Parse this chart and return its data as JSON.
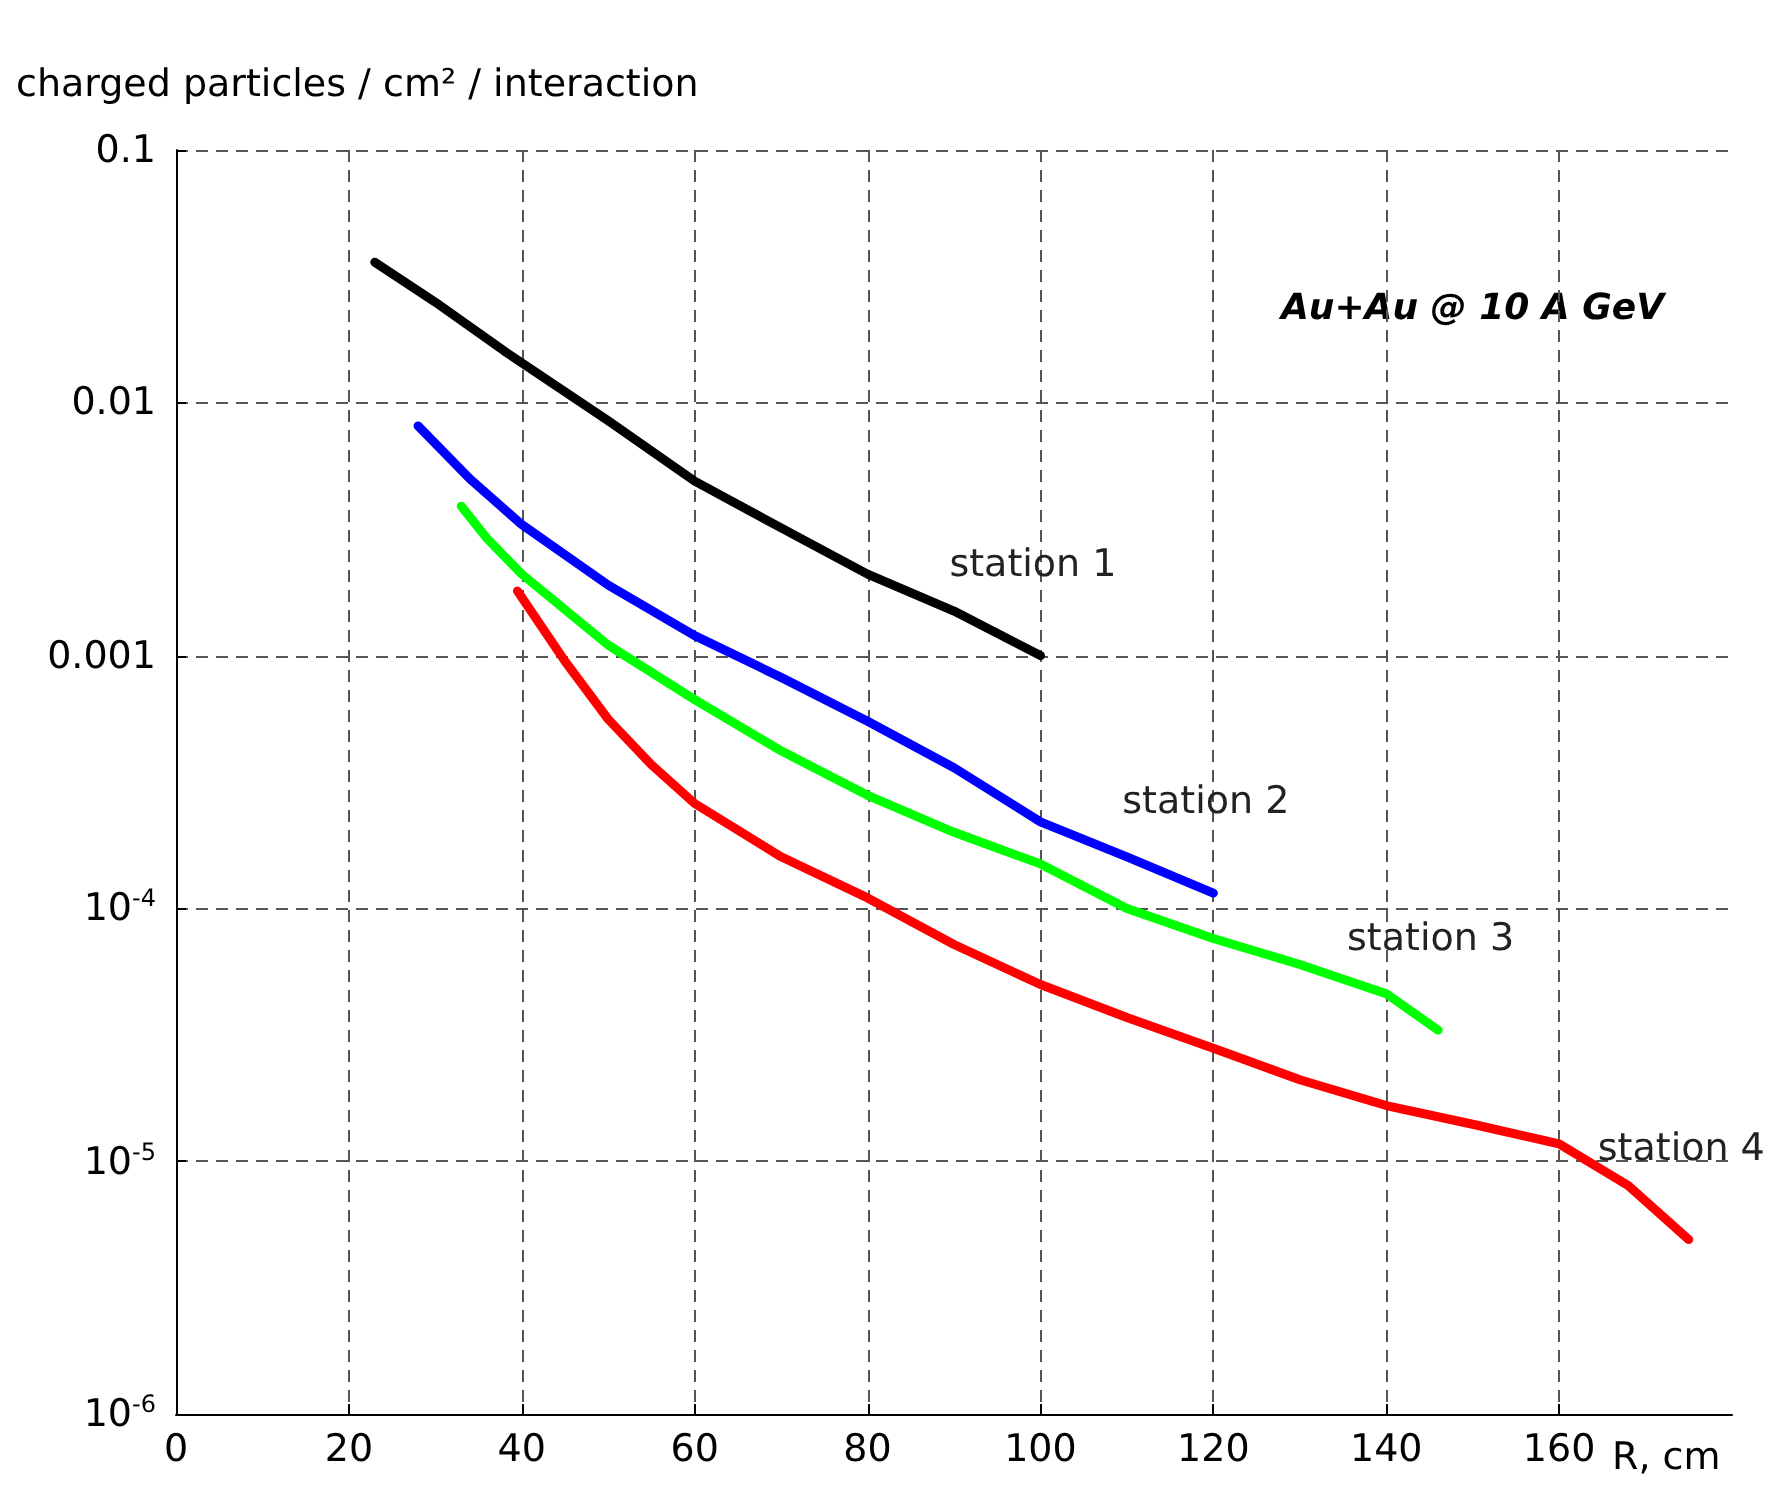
{
  "chart_data": {
    "type": "line",
    "ylabel": "charged particles / cm² / interaction",
    "xlabel": "R, cm",
    "log": "y",
    "grid": true,
    "legend": false,
    "marker": "none",
    "line_style": "solid",
    "xlim": [
      0,
      180
    ],
    "xticks": [
      0,
      20,
      40,
      60,
      80,
      100,
      120,
      140,
      160
    ],
    "ylim": [
      1e-06,
      0.1
    ],
    "yticks": [
      {
        "value": 1e-06,
        "label": "10$^{-6}$"
      },
      {
        "value": 1e-05,
        "label": "10$^{-5}$"
      },
      {
        "value": 0.0001,
        "label": "10$^{-4}$"
      },
      "0.001",
      "0.01",
      "0.1"
    ],
    "series": [
      {
        "name": "station 1",
        "color": "#000000",
        "x": [
          23,
          30,
          38,
          50,
          60,
          70,
          80,
          90,
          100
        ],
        "values": [
          0.036,
          0.025,
          0.016,
          0.0085,
          0.0049,
          0.0032,
          0.0021,
          0.0015,
          0.001
        ]
      },
      {
        "name": "station 2",
        "color": "#0000ff",
        "x": [
          28,
          34,
          40,
          50,
          60,
          70,
          80,
          90,
          100,
          110,
          120
        ],
        "values": [
          0.0081,
          0.005,
          0.0033,
          0.0019,
          0.0012,
          0.00082,
          0.00055,
          0.00036,
          0.00022,
          0.00016,
          0.000115
        ]
      },
      {
        "name": "station 3",
        "color": "#00ff00",
        "x": [
          33,
          36,
          40,
          50,
          60,
          70,
          80,
          90,
          100,
          110,
          120,
          130,
          140,
          146
        ],
        "values": [
          0.0039,
          0.0029,
          0.0021,
          0.0011,
          0.00067,
          0.00042,
          0.00028,
          0.0002,
          0.00015,
          0.0001,
          7.6e-05,
          6e-05,
          4.6e-05,
          3.3e-05
        ]
      },
      {
        "name": "station 4",
        "color": "#ff0000",
        "x": [
          39.5,
          45,
          50,
          55,
          60,
          70,
          80,
          90,
          100,
          110,
          120,
          130,
          140,
          150,
          160,
          168,
          175
        ],
        "values": [
          0.0018,
          0.00095,
          0.00056,
          0.00037,
          0.00026,
          0.00016,
          0.00011,
          7.2e-05,
          5e-05,
          3.7e-05,
          2.8e-05,
          2.1e-05,
          1.66e-05,
          1.4e-05,
          1.17e-05,
          8e-06,
          4.9e-06
        ]
      }
    ],
    "annotations": [
      "Au+Au @ 10 A GeV"
    ]
  }
}
